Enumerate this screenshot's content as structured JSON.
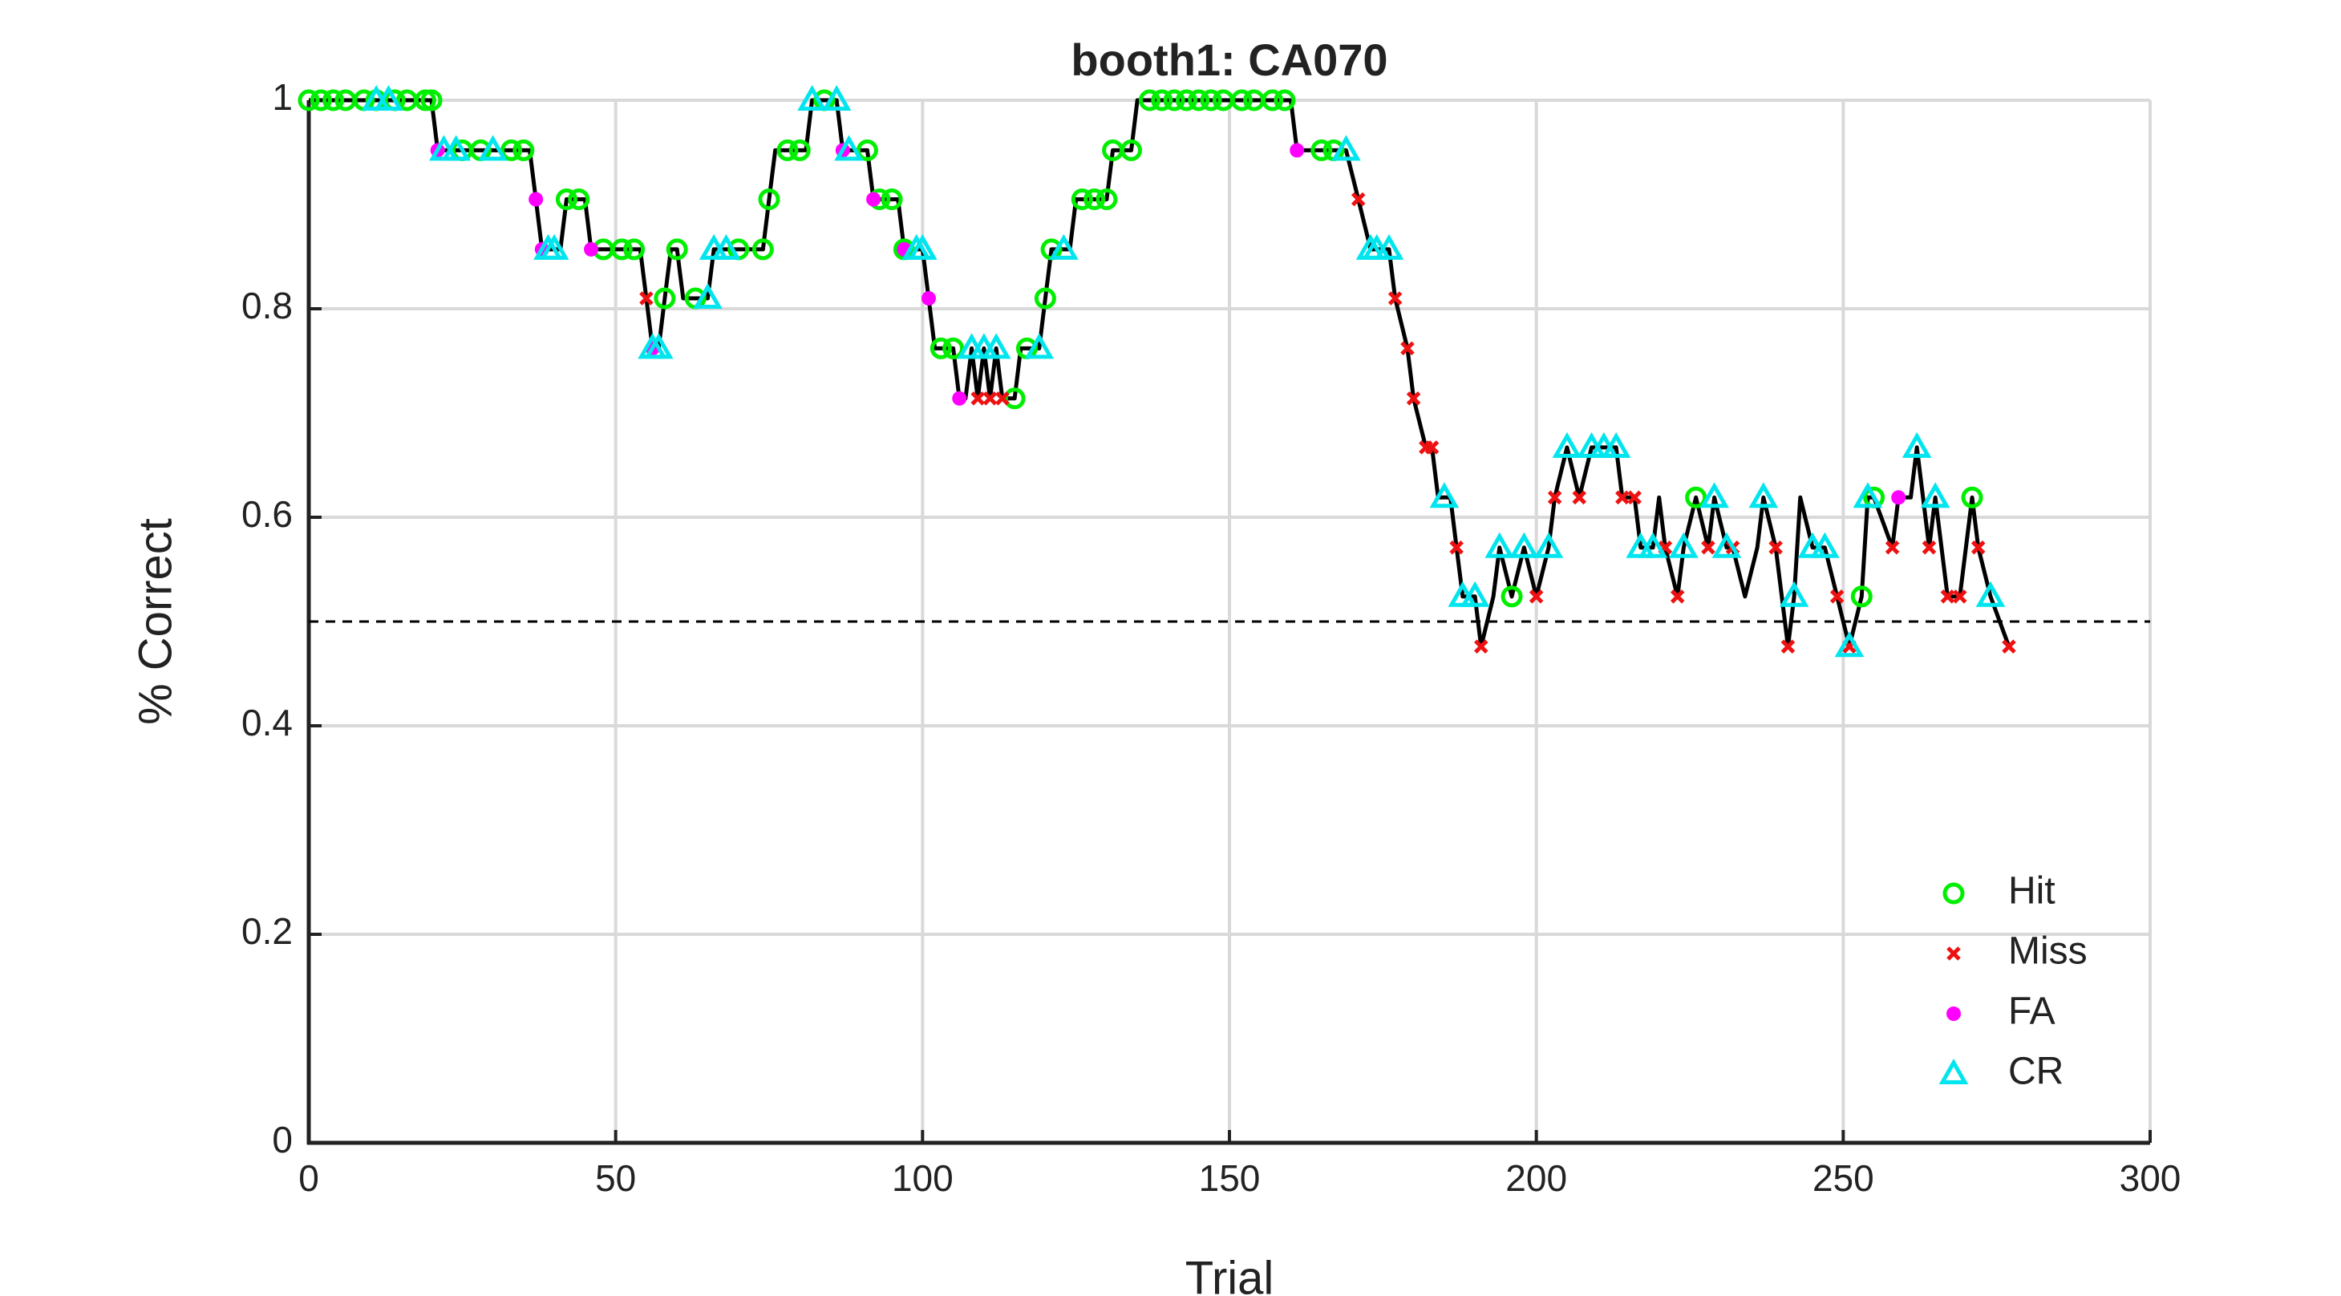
{
  "chart_data": {
    "type": "line",
    "title": "booth1: CA070",
    "xlabel": "Trial",
    "ylabel": "% Correct",
    "xlim": [
      0,
      300
    ],
    "ylim": [
      0,
      1
    ],
    "xticks": [
      0,
      50,
      100,
      150,
      200,
      250,
      300
    ],
    "yticks": [
      0,
      0.2,
      0.4,
      0.6,
      0.8,
      1
    ],
    "grid": true,
    "legend": "lower right",
    "line_color": "#000000",
    "reference_line": 0.5,
    "x": [
      0,
      20,
      21,
      36,
      37,
      38,
      41,
      42,
      45,
      46,
      54,
      55,
      56,
      57,
      58,
      59,
      60,
      61,
      65,
      66,
      74,
      75,
      76,
      81,
      82,
      86,
      87,
      91,
      92,
      96,
      97,
      100,
      101,
      102,
      105,
      106,
      107,
      108,
      109,
      110,
      111,
      112,
      113,
      115,
      116,
      119,
      120,
      121,
      124,
      125,
      130,
      131,
      134,
      135,
      160,
      161,
      169,
      171,
      173,
      176,
      177,
      179,
      180,
      182,
      183,
      184,
      186,
      187,
      188,
      190,
      191,
      193,
      194,
      196,
      198,
      200,
      202,
      203,
      205,
      207,
      209,
      213,
      214,
      216,
      217,
      219,
      220,
      221,
      223,
      224,
      226,
      228,
      229,
      231,
      232,
      234,
      236,
      237,
      239,
      241,
      242,
      243,
      245,
      247,
      249,
      251,
      253,
      254,
      255,
      258,
      259,
      261,
      262,
      264,
      265,
      267,
      269,
      271,
      272,
      274,
      277
    ],
    "values": [
      1,
      1,
      0.952,
      0.952,
      0.905,
      0.857,
      0.857,
      0.905,
      0.905,
      0.857,
      0.857,
      0.81,
      0.762,
      0.762,
      0.81,
      0.857,
      0.857,
      0.81,
      0.81,
      0.857,
      0.857,
      0.905,
      0.952,
      0.952,
      1,
      1,
      0.952,
      0.952,
      0.905,
      0.905,
      0.857,
      0.857,
      0.81,
      0.762,
      0.762,
      0.714,
      0.714,
      0.762,
      0.714,
      0.762,
      0.714,
      0.762,
      0.714,
      0.714,
      0.762,
      0.762,
      0.81,
      0.857,
      0.857,
      0.905,
      0.905,
      0.952,
      0.952,
      1,
      1,
      0.952,
      0.952,
      0.905,
      0.857,
      0.857,
      0.81,
      0.762,
      0.714,
      0.667,
      0.667,
      0.619,
      0.619,
      0.571,
      0.524,
      0.524,
      0.476,
      0.524,
      0.571,
      0.524,
      0.571,
      0.524,
      0.571,
      0.619,
      0.667,
      0.619,
      0.667,
      0.667,
      0.619,
      0.619,
      0.571,
      0.571,
      0.619,
      0.571,
      0.524,
      0.571,
      0.619,
      0.571,
      0.619,
      0.571,
      0.571,
      0.524,
      0.571,
      0.619,
      0.571,
      0.476,
      0.524,
      0.619,
      0.571,
      0.571,
      0.524,
      0.476,
      0.524,
      0.619,
      0.619,
      0.571,
      0.619,
      0.619,
      0.667,
      0.571,
      0.619,
      0.524,
      0.524,
      0.619,
      0.571,
      0.524,
      0.476
    ],
    "series": [
      {
        "name": "Hit",
        "color": "#00ee00",
        "marker": "circle",
        "x": [
          0,
          2,
          4,
          6,
          9,
          11,
          14,
          16,
          19,
          20,
          25,
          28,
          33,
          35,
          42,
          44,
          48,
          51,
          53,
          58,
          60,
          63,
          70,
          74,
          75,
          78,
          80,
          84,
          91,
          93,
          95,
          97,
          103,
          105,
          115,
          117,
          120,
          121,
          126,
          128,
          130,
          131,
          134,
          137,
          139,
          141,
          143,
          145,
          147,
          149,
          152,
          154,
          157,
          159,
          165,
          167,
          196,
          226,
          253,
          255,
          271
        ],
        "values": [
          1,
          1,
          1,
          1,
          1,
          1,
          1,
          1,
          1,
          1,
          0.952,
          0.952,
          0.952,
          0.952,
          0.905,
          0.905,
          0.857,
          0.857,
          0.857,
          0.81,
          0.857,
          0.81,
          0.857,
          0.857,
          0.905,
          0.952,
          0.952,
          1,
          0.952,
          0.905,
          0.905,
          0.857,
          0.762,
          0.762,
          0.714,
          0.762,
          0.81,
          0.857,
          0.905,
          0.905,
          0.905,
          0.952,
          0.952,
          1,
          1,
          1,
          1,
          1,
          1,
          1,
          1,
          1,
          1,
          1,
          0.952,
          0.952,
          0.524,
          0.619,
          0.524,
          0.619,
          0.619
        ]
      },
      {
        "name": "Miss",
        "color": "#ee1111",
        "marker": "x",
        "x": [
          55,
          109,
          111,
          113,
          171,
          177,
          179,
          180,
          182,
          183,
          187,
          191,
          200,
          203,
          207,
          214,
          216,
          221,
          223,
          228,
          232,
          239,
          241,
          249,
          251,
          258,
          264,
          267,
          269,
          272,
          277
        ],
        "values": [
          0.81,
          0.714,
          0.714,
          0.714,
          0.905,
          0.81,
          0.762,
          0.714,
          0.667,
          0.667,
          0.571,
          0.476,
          0.524,
          0.619,
          0.619,
          0.619,
          0.619,
          0.571,
          0.524,
          0.571,
          0.571,
          0.571,
          0.476,
          0.524,
          0.476,
          0.571,
          0.571,
          0.524,
          0.524,
          0.571,
          0.476
        ]
      },
      {
        "name": "FA",
        "color": "#ff00ff",
        "marker": "dot",
        "x": [
          21,
          37,
          38,
          46,
          56,
          87,
          92,
          97,
          101,
          106,
          161,
          259
        ],
        "values": [
          0.952,
          0.905,
          0.857,
          0.857,
          0.762,
          0.952,
          0.905,
          0.857,
          0.81,
          0.714,
          0.952,
          0.619
        ]
      },
      {
        "name": "CR",
        "color": "#00e5ee",
        "marker": "triangle",
        "x": [
          11,
          13,
          22,
          24,
          30,
          39,
          40,
          56,
          57,
          65,
          66,
          68,
          82,
          86,
          88,
          99,
          100,
          108,
          110,
          112,
          119,
          123,
          169,
          173,
          174,
          176,
          185,
          188,
          190,
          194,
          198,
          202,
          205,
          209,
          211,
          213,
          217,
          219,
          224,
          229,
          231,
          237,
          242,
          245,
          247,
          251,
          254,
          262,
          265,
          274
        ],
        "values": [
          1,
          1,
          0.952,
          0.952,
          0.952,
          0.857,
          0.857,
          0.762,
          0.762,
          0.81,
          0.857,
          0.857,
          1,
          1,
          0.952,
          0.857,
          0.857,
          0.762,
          0.762,
          0.762,
          0.762,
          0.857,
          0.952,
          0.857,
          0.857,
          0.857,
          0.619,
          0.524,
          0.524,
          0.571,
          0.571,
          0.571,
          0.667,
          0.667,
          0.667,
          0.667,
          0.571,
          0.571,
          0.571,
          0.619,
          0.571,
          0.619,
          0.524,
          0.571,
          0.571,
          0.476,
          0.619,
          0.667,
          0.619,
          0.524
        ]
      }
    ]
  }
}
